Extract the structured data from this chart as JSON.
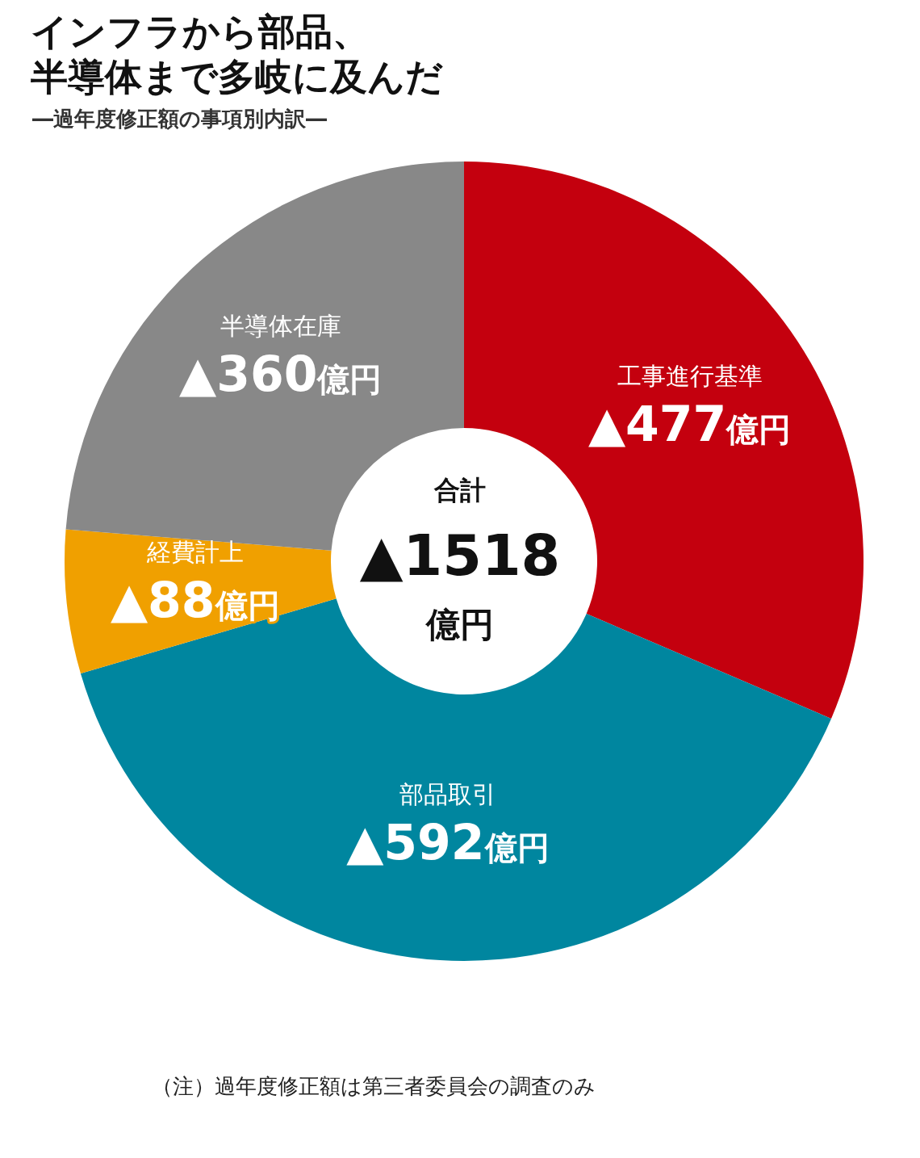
{
  "chart_data": {
    "type": "donut",
    "title": "インフラから部品、半導体まで多岐に及んだ",
    "subtitle": "―過年度修正額の事項別内訳―",
    "categories": [
      "工事進行基準",
      "部品取引",
      "経費計上",
      "半導体在庫"
    ],
    "values": [
      477,
      592,
      88,
      360
    ],
    "value_labels": [
      "▲477億円",
      "▲592億円",
      "▲88億円",
      "▲360億円"
    ],
    "colors": [
      "#c4000e",
      "#00869f",
      "#f0a000",
      "#888888"
    ],
    "annotations": [
      "合計",
      "▲1518",
      "億円",
      "（注）過年度修正額は第三者委員会の調査のみ"
    ],
    "legend": false
  }
}
